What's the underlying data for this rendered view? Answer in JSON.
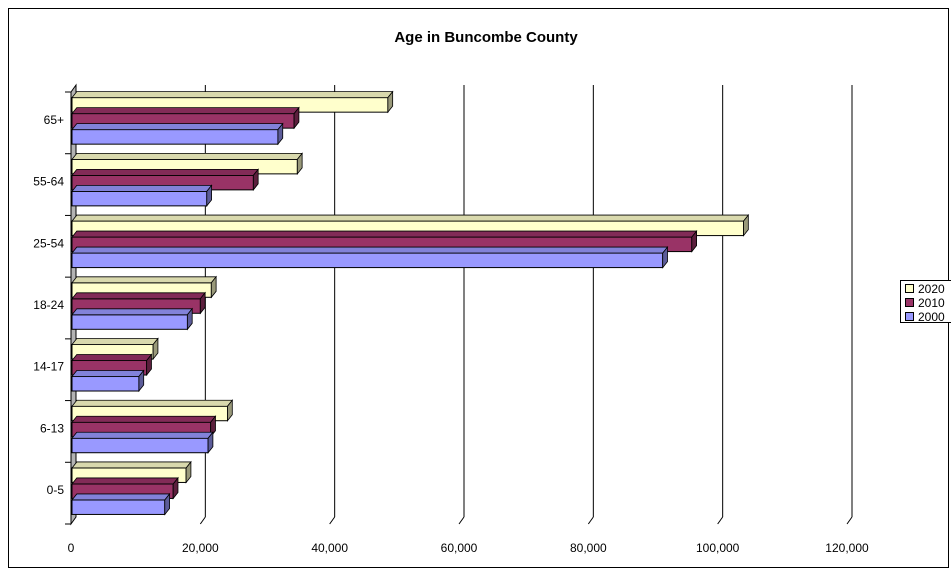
{
  "chart_data": {
    "type": "bar",
    "orientation": "horizontal",
    "style": "3d",
    "title": "Age in Buncombe County",
    "categories": [
      "0-5",
      "6-13",
      "14-17",
      "18-24",
      "25-54",
      "55-64",
      "65+"
    ],
    "series": [
      {
        "name": "2000",
        "color": "#9999FF",
        "values": [
          14500,
          21200,
          10500,
          18000,
          91500,
          21000,
          32000
        ]
      },
      {
        "name": "2010",
        "color": "#993366",
        "values": [
          15800,
          21600,
          11700,
          20000,
          96000,
          28200,
          34500
        ]
      },
      {
        "name": "2020",
        "color": "#FFFFCC",
        "values": [
          17800,
          24200,
          12700,
          21700,
          104000,
          35000,
          49000
        ]
      }
    ],
    "legend_order": [
      "2020",
      "2010",
      "2000"
    ],
    "xlim": [
      0,
      120000
    ],
    "xticks": [
      0,
      20000,
      40000,
      60000,
      80000,
      100000,
      120000
    ],
    "xtick_labels": [
      "0",
      "20,000",
      "40,000",
      "60,000",
      "80,000",
      "100,000",
      "120,000"
    ],
    "grid": true,
    "legend_position": "right"
  }
}
